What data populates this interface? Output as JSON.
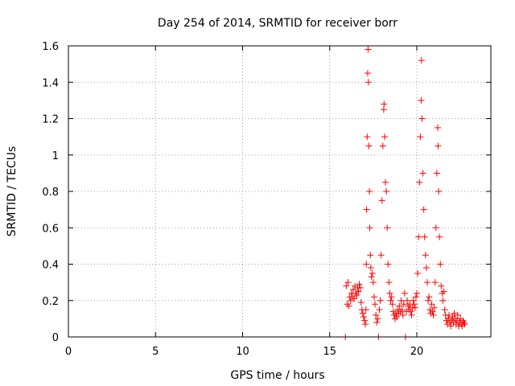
{
  "chart_data": {
    "type": "scatter",
    "title": "Day 254 of 2014, SRMTID for receiver borr",
    "xlabel": "GPS time / hours",
    "ylabel": "SRMTID / TECUs",
    "xlim": [
      0,
      24.25
    ],
    "ylim": [
      0,
      1.6
    ],
    "grid": true,
    "marker": "+",
    "series_color": "#ff0000",
    "x_ticks": [
      {
        "value": 0,
        "label": "0"
      },
      {
        "value": 5,
        "label": "5"
      },
      {
        "value": 10,
        "label": "10"
      },
      {
        "value": 15,
        "label": "15"
      },
      {
        "value": 20,
        "label": "20"
      }
    ],
    "y_ticks": [
      {
        "value": 0,
        "label": "0"
      },
      {
        "value": 0.2,
        "label": "0.2"
      },
      {
        "value": 0.4,
        "label": "0.4"
      },
      {
        "value": 0.6,
        "label": "0.6"
      },
      {
        "value": 0.8,
        "label": "0.8"
      },
      {
        "value": 1.0,
        "label": "1"
      },
      {
        "value": 1.2,
        "label": "1.2"
      },
      {
        "value": 1.4,
        "label": "1.4"
      },
      {
        "value": 1.6,
        "label": "1.6"
      }
    ],
    "points": [
      [
        15.9,
        0.0
      ],
      [
        15.95,
        0.28
      ],
      [
        16.0,
        0.18
      ],
      [
        16.05,
        0.3
      ],
      [
        16.1,
        0.17
      ],
      [
        16.15,
        0.22
      ],
      [
        16.2,
        0.2
      ],
      [
        16.25,
        0.24
      ],
      [
        16.3,
        0.22
      ],
      [
        16.35,
        0.26
      ],
      [
        16.4,
        0.21
      ],
      [
        16.45,
        0.28
      ],
      [
        16.5,
        0.24
      ],
      [
        16.55,
        0.23
      ],
      [
        16.6,
        0.27
      ],
      [
        16.65,
        0.25
      ],
      [
        16.7,
        0.29
      ],
      [
        16.75,
        0.27
      ],
      [
        16.8,
        0.19
      ],
      [
        16.85,
        0.15
      ],
      [
        16.9,
        0.13
      ],
      [
        16.95,
        0.11
      ],
      [
        17.0,
        0.09
      ],
      [
        17.05,
        0.07
      ],
      [
        17.08,
        0.15
      ],
      [
        17.1,
        0.4
      ],
      [
        17.12,
        0.7
      ],
      [
        17.15,
        1.1
      ],
      [
        17.18,
        1.45
      ],
      [
        17.2,
        1.58
      ],
      [
        17.22,
        1.4
      ],
      [
        17.25,
        1.05
      ],
      [
        17.28,
        0.8
      ],
      [
        17.3,
        0.6
      ],
      [
        17.33,
        0.45
      ],
      [
        17.36,
        0.38
      ],
      [
        17.4,
        0.33
      ],
      [
        17.45,
        0.35
      ],
      [
        17.5,
        0.3
      ],
      [
        17.55,
        0.22
      ],
      [
        17.6,
        0.18
      ],
      [
        17.65,
        0.12
      ],
      [
        17.7,
        0.08
      ],
      [
        17.75,
        0.1
      ],
      [
        17.8,
        0.0
      ],
      [
        17.85,
        0.15
      ],
      [
        17.9,
        0.2
      ],
      [
        17.95,
        0.45
      ],
      [
        18.0,
        0.75
      ],
      [
        18.05,
        1.05
      ],
      [
        18.1,
        1.25
      ],
      [
        18.12,
        1.28
      ],
      [
        18.15,
        1.1
      ],
      [
        18.2,
        0.85
      ],
      [
        18.25,
        0.8
      ],
      [
        18.3,
        0.6
      ],
      [
        18.35,
        0.4
      ],
      [
        18.4,
        0.3
      ],
      [
        18.45,
        0.24
      ],
      [
        18.5,
        0.2
      ],
      [
        18.55,
        0.22
      ],
      [
        18.6,
        0.18
      ],
      [
        18.65,
        0.14
      ],
      [
        18.7,
        0.12
      ],
      [
        18.75,
        0.1
      ],
      [
        18.8,
        0.13
      ],
      [
        18.85,
        0.11
      ],
      [
        18.9,
        0.15
      ],
      [
        18.95,
        0.13
      ],
      [
        19.0,
        0.17
      ],
      [
        19.05,
        0.14
      ],
      [
        19.1,
        0.2
      ],
      [
        19.15,
        0.15
      ],
      [
        19.2,
        0.12
      ],
      [
        19.25,
        0.18
      ],
      [
        19.3,
        0.24
      ],
      [
        19.35,
        0.0
      ],
      [
        19.4,
        0.14
      ],
      [
        19.45,
        0.2
      ],
      [
        19.5,
        0.17
      ],
      [
        19.55,
        0.15
      ],
      [
        19.6,
        0.18
      ],
      [
        19.65,
        0.14
      ],
      [
        19.7,
        0.12
      ],
      [
        19.75,
        0.16
      ],
      [
        19.8,
        0.2
      ],
      [
        19.85,
        0.18
      ],
      [
        19.9,
        0.16
      ],
      [
        19.95,
        0.22
      ],
      [
        20.0,
        0.24
      ],
      [
        20.05,
        0.35
      ],
      [
        20.1,
        0.55
      ],
      [
        20.15,
        0.85
      ],
      [
        20.2,
        1.1
      ],
      [
        20.25,
        1.3
      ],
      [
        20.27,
        1.52
      ],
      [
        20.3,
        1.2
      ],
      [
        20.35,
        0.9
      ],
      [
        20.4,
        0.7
      ],
      [
        20.45,
        0.55
      ],
      [
        20.5,
        0.45
      ],
      [
        20.55,
        0.38
      ],
      [
        20.6,
        0.3
      ],
      [
        20.65,
        0.2
      ],
      [
        20.7,
        0.22
      ],
      [
        20.75,
        0.15
      ],
      [
        20.8,
        0.13
      ],
      [
        20.85,
        0.18
      ],
      [
        20.9,
        0.14
      ],
      [
        20.95,
        0.12
      ],
      [
        21.0,
        0.16
      ],
      [
        21.05,
        0.3
      ],
      [
        21.1,
        0.6
      ],
      [
        21.15,
        0.9
      ],
      [
        21.2,
        1.15
      ],
      [
        21.22,
        1.05
      ],
      [
        21.25,
        0.8
      ],
      [
        21.3,
        0.55
      ],
      [
        21.35,
        0.4
      ],
      [
        21.4,
        0.28
      ],
      [
        21.45,
        0.24
      ],
      [
        21.5,
        0.2
      ],
      [
        21.55,
        0.25
      ],
      [
        21.6,
        0.15
      ],
      [
        21.65,
        0.12
      ],
      [
        21.7,
        0.09
      ],
      [
        21.75,
        0.07
      ],
      [
        21.8,
        0.1
      ],
      [
        21.85,
        0.12
      ],
      [
        21.9,
        0.08
      ],
      [
        21.95,
        0.06
      ],
      [
        22.0,
        0.09
      ],
      [
        22.05,
        0.11
      ],
      [
        22.1,
        0.08
      ],
      [
        22.15,
        0.13
      ],
      [
        22.2,
        0.1
      ],
      [
        22.25,
        0.07
      ],
      [
        22.3,
        0.09
      ],
      [
        22.35,
        0.12
      ],
      [
        22.4,
        0.06
      ],
      [
        22.45,
        0.08
      ],
      [
        22.5,
        0.1
      ],
      [
        22.55,
        0.07
      ],
      [
        22.6,
        0.06
      ],
      [
        22.65,
        0.09
      ],
      [
        22.7,
        0.08
      ],
      [
        22.75,
        0.07
      ]
    ]
  }
}
